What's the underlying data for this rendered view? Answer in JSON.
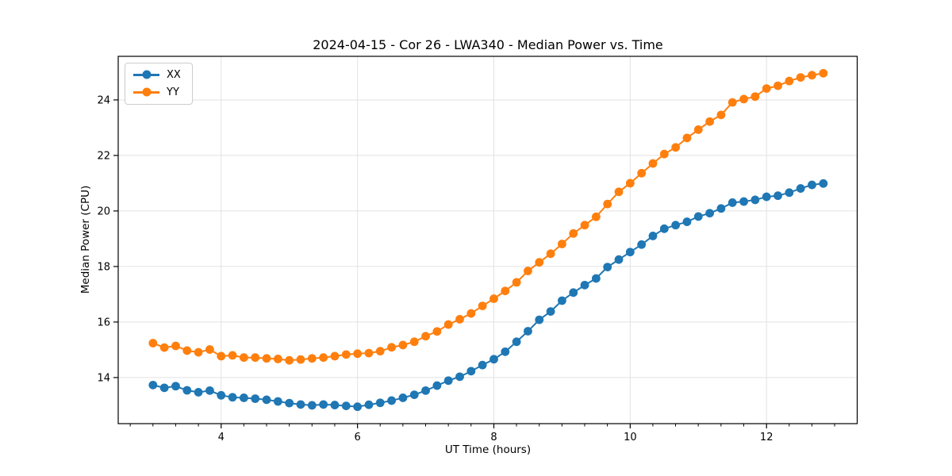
{
  "chart_data": {
    "type": "line",
    "title": "2024-04-15 - Cor 26 - LWA340 - Median Power vs. Time",
    "xlabel": "UT Time (hours)",
    "ylabel": "Median Power (CPU)",
    "xlim": [
      2.49,
      13.33
    ],
    "ylim": [
      12.34,
      25.57
    ],
    "x_ticks": [
      4,
      6,
      8,
      10,
      12
    ],
    "y_ticks": [
      14,
      16,
      18,
      20,
      22,
      24
    ],
    "x_minor_tick_step": 0.3333,
    "grid": true,
    "grid_color": "#e2e2e2",
    "legend_position": "upper left",
    "marker": "o",
    "x": [
      3.0,
      3.1667,
      3.3333,
      3.5,
      3.6667,
      3.8333,
      4.0,
      4.1667,
      4.3333,
      4.5,
      4.6667,
      4.8333,
      5.0,
      5.1667,
      5.3333,
      5.5,
      5.6667,
      5.8333,
      6.0,
      6.1667,
      6.3333,
      6.5,
      6.6667,
      6.8333,
      7.0,
      7.1667,
      7.3333,
      7.5,
      7.6667,
      7.8333,
      8.0,
      8.1667,
      8.3333,
      8.5,
      8.6667,
      8.8333,
      9.0,
      9.1667,
      9.3333,
      9.5,
      9.6667,
      9.8333,
      10.0,
      10.1667,
      10.3333,
      10.5,
      10.6667,
      10.8333,
      11.0,
      11.1667,
      11.3333,
      11.5,
      11.6667,
      11.8333,
      12.0,
      12.1667,
      12.3333,
      12.5,
      12.6667,
      12.8333
    ],
    "series": [
      {
        "name": "XX",
        "color": "#1f77b4",
        "values": [
          13.73,
          13.63,
          13.69,
          13.54,
          13.47,
          13.53,
          13.36,
          13.29,
          13.27,
          13.24,
          13.2,
          13.14,
          13.08,
          13.03,
          13.0,
          13.03,
          13.01,
          12.98,
          12.95,
          13.02,
          13.09,
          13.17,
          13.27,
          13.38,
          13.53,
          13.71,
          13.89,
          14.03,
          14.23,
          14.45,
          14.66,
          14.93,
          15.29,
          15.67,
          16.08,
          16.38,
          16.77,
          17.06,
          17.33,
          17.57,
          17.98,
          18.25,
          18.52,
          18.79,
          19.1,
          19.36,
          19.49,
          19.61,
          19.8,
          19.92,
          20.09,
          20.3,
          20.34,
          20.4,
          20.51,
          20.55,
          20.66,
          20.81,
          20.94,
          20.99
        ]
      },
      {
        "name": "YY",
        "color": "#ff7f0e",
        "values": [
          15.24,
          15.08,
          15.14,
          14.97,
          14.91,
          15.01,
          14.77,
          14.8,
          14.72,
          14.72,
          14.69,
          14.67,
          14.62,
          14.65,
          14.69,
          14.72,
          14.77,
          14.83,
          14.86,
          14.88,
          14.95,
          15.09,
          15.17,
          15.29,
          15.49,
          15.66,
          15.91,
          16.1,
          16.31,
          16.58,
          16.84,
          17.12,
          17.43,
          17.84,
          18.15,
          18.46,
          18.81,
          19.19,
          19.49,
          19.79,
          20.25,
          20.69,
          21.0,
          21.36,
          21.71,
          22.05,
          22.29,
          22.63,
          22.93,
          23.22,
          23.46,
          23.91,
          24.03,
          24.12,
          24.41,
          24.51,
          24.68,
          24.81,
          24.89,
          24.96
        ]
      }
    ]
  }
}
